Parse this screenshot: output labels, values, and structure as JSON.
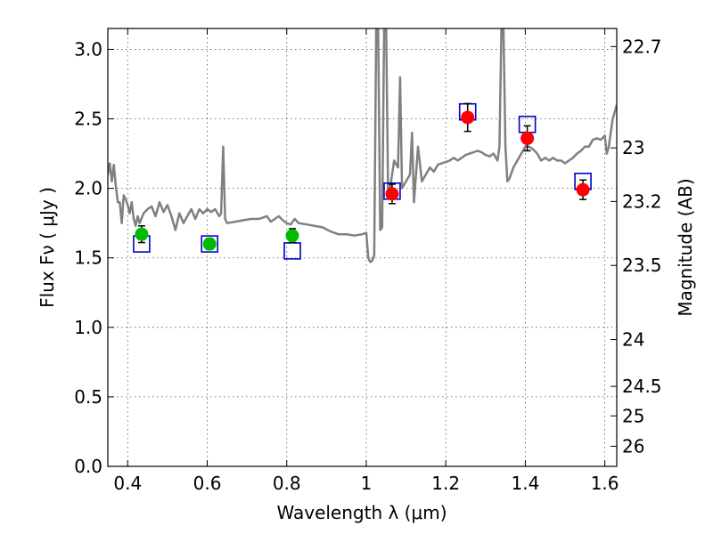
{
  "chart_data": {
    "type": "scatter",
    "xlabel": "Wavelength  λ (μm)",
    "ylabel": "Flux  Fν  ( μJy )",
    "ylabel_right": "Magnitude (AB)",
    "xlim": [
      0.35,
      1.63
    ],
    "ylim": [
      0.0,
      3.15
    ],
    "grid": true,
    "x_ticks": [
      0.4,
      0.6,
      0.8,
      1.0,
      1.2,
      1.4,
      1.6
    ],
    "x_tick_labels": [
      "0.4",
      "0.6",
      "0.8",
      "1",
      "1.2",
      "1.4",
      "1.6"
    ],
    "y_ticks": [
      0.0,
      0.5,
      1.0,
      1.5,
      2.0,
      2.5,
      3.0
    ],
    "y_tick_labels": [
      "0.0",
      "0.5",
      "1.0",
      "1.5",
      "2.0",
      "2.5",
      "3.0"
    ],
    "right_ticks": [
      {
        "label": "22.7",
        "mag": 22.7
      },
      {
        "label": "23",
        "mag": 23.0
      },
      {
        "label": "23.2",
        "mag": 23.2
      },
      {
        "label": "23.5",
        "mag": 23.5
      },
      {
        "label": "24",
        "mag": 24.0
      },
      {
        "label": "24.5",
        "mag": 24.5
      },
      {
        "label": "25",
        "mag": 25.0
      },
      {
        "label": "26",
        "mag": 26.0
      }
    ],
    "colors": {
      "model": "#808080",
      "optical": "#00bb00",
      "nir": "#ff0000",
      "model_box": "#0000cc",
      "errorbar": "#000000"
    },
    "model_spectrum": [
      [
        0.35,
        2.1
      ],
      [
        0.355,
        2.18
      ],
      [
        0.36,
        2.05
      ],
      [
        0.365,
        2.17
      ],
      [
        0.37,
        2.02
      ],
      [
        0.375,
        1.9
      ],
      [
        0.38,
        1.9
      ],
      [
        0.385,
        1.75
      ],
      [
        0.39,
        1.95
      ],
      [
        0.395,
        1.92
      ],
      [
        0.4,
        1.88
      ],
      [
        0.405,
        1.82
      ],
      [
        0.41,
        1.9
      ],
      [
        0.415,
        1.78
      ],
      [
        0.42,
        1.73
      ],
      [
        0.425,
        1.8
      ],
      [
        0.43,
        1.75
      ],
      [
        0.44,
        1.82
      ],
      [
        0.45,
        1.85
      ],
      [
        0.46,
        1.87
      ],
      [
        0.47,
        1.8
      ],
      [
        0.48,
        1.9
      ],
      [
        0.49,
        1.83
      ],
      [
        0.5,
        1.88
      ],
      [
        0.51,
        1.8
      ],
      [
        0.52,
        1.7
      ],
      [
        0.53,
        1.82
      ],
      [
        0.54,
        1.75
      ],
      [
        0.55,
        1.8
      ],
      [
        0.56,
        1.85
      ],
      [
        0.57,
        1.78
      ],
      [
        0.58,
        1.85
      ],
      [
        0.59,
        1.82
      ],
      [
        0.6,
        1.85
      ],
      [
        0.61,
        1.83
      ],
      [
        0.62,
        1.85
      ],
      [
        0.63,
        1.8
      ],
      [
        0.635,
        1.82
      ],
      [
        0.64,
        2.3
      ],
      [
        0.645,
        1.78
      ],
      [
        0.65,
        1.75
      ],
      [
        0.67,
        1.76
      ],
      [
        0.69,
        1.77
      ],
      [
        0.71,
        1.78
      ],
      [
        0.73,
        1.78
      ],
      [
        0.75,
        1.8
      ],
      [
        0.76,
        1.76
      ],
      [
        0.77,
        1.78
      ],
      [
        0.78,
        1.8
      ],
      [
        0.79,
        1.77
      ],
      [
        0.8,
        1.75
      ],
      [
        0.81,
        1.74
      ],
      [
        0.82,
        1.78
      ],
      [
        0.83,
        1.75
      ],
      [
        0.85,
        1.74
      ],
      [
        0.87,
        1.73
      ],
      [
        0.89,
        1.72
      ],
      [
        0.91,
        1.69
      ],
      [
        0.93,
        1.67
      ],
      [
        0.95,
        1.67
      ],
      [
        0.97,
        1.66
      ],
      [
        0.99,
        1.67
      ],
      [
        1.0,
        1.68
      ],
      [
        1.005,
        1.5
      ],
      [
        1.01,
        1.47
      ],
      [
        1.015,
        1.48
      ],
      [
        1.02,
        1.52
      ],
      [
        1.025,
        3.15
      ],
      [
        1.03,
        3.15
      ],
      [
        1.035,
        1.7
      ],
      [
        1.04,
        1.72
      ],
      [
        1.045,
        3.15
      ],
      [
        1.05,
        3.15
      ],
      [
        1.055,
        1.95
      ],
      [
        1.06,
        2.0
      ],
      [
        1.07,
        2.2
      ],
      [
        1.08,
        2.15
      ],
      [
        1.085,
        2.8
      ],
      [
        1.09,
        2.0
      ],
      [
        1.1,
        2.05
      ],
      [
        1.11,
        2.1
      ],
      [
        1.115,
        2.4
      ],
      [
        1.12,
        1.9
      ],
      [
        1.13,
        2.3
      ],
      [
        1.14,
        2.05
      ],
      [
        1.15,
        2.1
      ],
      [
        1.16,
        2.15
      ],
      [
        1.17,
        2.12
      ],
      [
        1.18,
        2.17
      ],
      [
        1.19,
        2.18
      ],
      [
        1.2,
        2.19
      ],
      [
        1.21,
        2.2
      ],
      [
        1.22,
        2.22
      ],
      [
        1.23,
        2.2
      ],
      [
        1.24,
        2.22
      ],
      [
        1.25,
        2.24
      ],
      [
        1.26,
        2.25
      ],
      [
        1.27,
        2.26
      ],
      [
        1.28,
        2.27
      ],
      [
        1.29,
        2.26
      ],
      [
        1.3,
        2.24
      ],
      [
        1.31,
        2.23
      ],
      [
        1.32,
        2.25
      ],
      [
        1.33,
        2.2
      ],
      [
        1.335,
        2.3
      ],
      [
        1.34,
        3.15
      ],
      [
        1.345,
        3.15
      ],
      [
        1.35,
        2.3
      ],
      [
        1.355,
        2.05
      ],
      [
        1.36,
        2.07
      ],
      [
        1.37,
        2.15
      ],
      [
        1.38,
        2.2
      ],
      [
        1.39,
        2.25
      ],
      [
        1.4,
        2.3
      ],
      [
        1.41,
        2.3
      ],
      [
        1.42,
        2.28
      ],
      [
        1.43,
        2.25
      ],
      [
        1.44,
        2.2
      ],
      [
        1.45,
        2.22
      ],
      [
        1.46,
        2.2
      ],
      [
        1.47,
        2.22
      ],
      [
        1.48,
        2.2
      ],
      [
        1.49,
        2.2
      ],
      [
        1.5,
        2.18
      ],
      [
        1.51,
        2.2
      ],
      [
        1.52,
        2.22
      ],
      [
        1.53,
        2.25
      ],
      [
        1.54,
        2.27
      ],
      [
        1.55,
        2.3
      ],
      [
        1.56,
        2.3
      ],
      [
        1.57,
        2.35
      ],
      [
        1.58,
        2.36
      ],
      [
        1.59,
        2.35
      ],
      [
        1.6,
        2.38
      ],
      [
        1.605,
        2.25
      ],
      [
        1.61,
        2.3
      ],
      [
        1.615,
        2.4
      ],
      [
        1.62,
        2.5
      ],
      [
        1.625,
        2.55
      ],
      [
        1.63,
        2.6
      ]
    ],
    "model_bands": [
      {
        "x": 0.435,
        "y": 1.6
      },
      {
        "x": 0.606,
        "y": 1.6
      },
      {
        "x": 0.814,
        "y": 1.55
      },
      {
        "x": 1.065,
        "y": 1.98
      },
      {
        "x": 1.255,
        "y": 2.55
      },
      {
        "x": 1.405,
        "y": 2.46
      },
      {
        "x": 1.545,
        "y": 2.05
      }
    ],
    "observed": [
      {
        "x": 0.435,
        "y": 1.67,
        "err": 0.06,
        "group": "optical"
      },
      {
        "x": 0.606,
        "y": 1.6,
        "err": 0.04,
        "group": "optical"
      },
      {
        "x": 0.814,
        "y": 1.66,
        "err": 0.05,
        "group": "optical"
      },
      {
        "x": 1.065,
        "y": 1.96,
        "err": 0.07,
        "group": "nir"
      },
      {
        "x": 1.255,
        "y": 2.51,
        "err": 0.1,
        "group": "nir"
      },
      {
        "x": 1.405,
        "y": 2.36,
        "err": 0.09,
        "group": "nir"
      },
      {
        "x": 1.545,
        "y": 1.99,
        "err": 0.07,
        "group": "nir"
      }
    ]
  }
}
